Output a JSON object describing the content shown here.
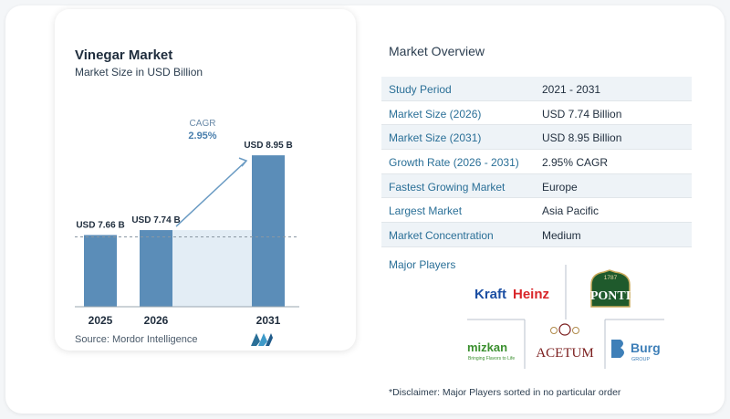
{
  "chart": {
    "title": "Vinegar Market",
    "subtitle": "Market Size in USD Billion",
    "source": "Source:  Mordor Intelligence",
    "cagr_label": "CAGR",
    "cagr_value": "2.95%"
  },
  "chart_data": {
    "type": "bar",
    "title": "Vinegar Market",
    "subtitle": "Market Size in USD Billion",
    "categories": [
      "2025",
      "2026",
      "2031"
    ],
    "values": [
      7.66,
      7.74,
      8.95
    ],
    "data_labels": [
      "USD 7.66 B",
      "USD 7.74 B",
      "USD 8.95 B"
    ],
    "ylabel": "",
    "xlabel": "",
    "grid": false,
    "colors": {
      "bar": "#5b8db8",
      "shade": "#e3edf5",
      "arrow": "#6a9bc3",
      "baseline": "#9aa5af",
      "reference": "#8a97a3"
    },
    "annotation": {
      "label": "CAGR",
      "value": "2.95%"
    }
  },
  "overview": {
    "title": "Market Overview",
    "rows": [
      {
        "key": "Study Period",
        "value": "2021 - 2031"
      },
      {
        "key": "Market Size (2026)",
        "value": "USD 7.74 Billion"
      },
      {
        "key": "Market Size (2031)",
        "value": "USD 8.95 Billion"
      },
      {
        "key": "Growth Rate (2026 - 2031)",
        "value": "2.95% CAGR"
      },
      {
        "key": "Fastest Growing Market",
        "value": "Europe"
      },
      {
        "key": "Largest Market",
        "value": "Asia Pacific"
      },
      {
        "key": "Market Concentration",
        "value": "Medium"
      }
    ]
  },
  "players": {
    "title": "Major Players",
    "names": [
      "KraftHeinz",
      "PONTI",
      "mizkan",
      "ACETUM",
      "Burg"
    ],
    "kraft": "Kraft",
    "heinz": "Heinz",
    "ponti_year": "1787",
    "mizkan_tagline": "Bringing Flavors to Life",
    "burg_sub": "GROUP"
  },
  "disclaimer": "*Disclaimer: Major Players sorted in no particular order",
  "colors": {
    "accent": "#2a6f97",
    "kraft": "#1c4fa3",
    "heinz": "#d9262a",
    "ponti": "#1f5a2c",
    "mizkan_green": "#3a8f2e",
    "acetum": "#7a1c1c",
    "burg": "#3e7fb8"
  }
}
